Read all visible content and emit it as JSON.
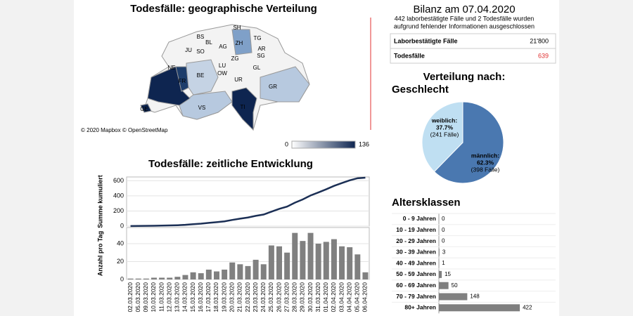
{
  "map": {
    "title": "Todesfälle: geographische Verteilung",
    "labels": [
      "SH",
      "BS",
      "BL",
      "TG",
      "JU",
      "SO",
      "AG",
      "ZH",
      "AR",
      "SG",
      "ZG",
      "GL",
      "LU",
      "NE",
      "OW",
      "BE",
      "UR",
      "FR",
      "GR",
      "VS",
      "TI",
      "GE"
    ],
    "attribution": "© 2020 Mapbox © OpenStreetMap",
    "legend": {
      "min": 0,
      "max": 136
    }
  },
  "summary": {
    "title": "Bilanz am 07.04.2020",
    "note": [
      "442 laborbestätigte Fälle und 2 Todesfälle wurden",
      "aufgrund fehlender Informationen ausgeschlossen"
    ],
    "rows": [
      [
        "Laborbestätigte Fälle",
        "21'800"
      ],
      [
        "Todesfälle",
        "639"
      ]
    ]
  },
  "chart_data": [
    {
      "type": "panels",
      "title": "Todesfälle: zeitliche Entwicklung",
      "categories": [
        "02.03.2020",
        "05.03.2020",
        "09.03.2020",
        "10.03.2020",
        "11.03.2020",
        "12.03.2020",
        "13.03.2020",
        "14.03.2020",
        "15.03.2020",
        "16.03.2020",
        "17.03.2020",
        "18.03.2020",
        "19.03.2020",
        "20.03.2020",
        "21.03.2020",
        "22.03.2020",
        "23.03.2020",
        "24.03.2020",
        "25.03.2020",
        "26.03.2020",
        "27.03.2020",
        "28.03.2020",
        "29.03.2020",
        "30.03.2020",
        "31.03.2020",
        "01.04.2020",
        "02.04.2020",
        "03.04.2020",
        "04.04.2020",
        "05.04.2020",
        "06.04.2020"
      ],
      "panels": [
        {
          "type": "line",
          "ylabel": "Summe kumuliert",
          "color": "#1b2f55",
          "ylim": [
            0,
            650
          ],
          "yticks": [
            0,
            200,
            400,
            600
          ],
          "grid": true,
          "values": [
            1,
            2,
            3,
            5,
            7,
            9,
            12,
            17,
            25,
            32,
            43,
            52,
            63,
            82,
            99,
            114,
            136,
            153,
            191,
            228,
            258,
            310,
            353,
            405,
            445,
            487,
            532,
            569,
            605,
            633,
            641
          ]
        },
        {
          "type": "bar",
          "ylabel": "Anzahl pro Tag",
          "color": "#808080",
          "ylim": [
            0,
            58
          ],
          "yticks": [
            0,
            20,
            40
          ],
          "grid": true,
          "values": [
            1,
            1,
            1,
            2,
            2,
            2,
            3,
            5,
            8,
            7,
            11,
            9,
            11,
            19,
            17,
            15,
            22,
            17,
            38,
            37,
            30,
            52,
            43,
            52,
            40,
            42,
            45,
            37,
            36,
            28,
            8
          ]
        }
      ]
    },
    {
      "type": "pie",
      "title": "Verteilung nach:",
      "subtitle": "Geschlecht",
      "labels": [
        "weiblich:",
        "männlich:"
      ],
      "values": [
        37.7,
        62.3
      ],
      "value_labels": [
        "37.7%",
        "62.3%"
      ],
      "case_labels": [
        "(241 Fälle)",
        "(398 Fälle)"
      ],
      "colors": [
        "#bfdff2",
        "#4a78b0"
      ]
    },
    {
      "type": "hbar",
      "title": "Altersklassen",
      "categories": [
        "0 - 9 Jahren",
        "10 - 19 Jahren",
        "20 - 29 Jahren",
        "30 - 39 Jahren",
        "40 - 49 Jahren",
        "50 - 59 Jahren",
        "60 - 69 Jahren",
        "70 - 79 Jahren",
        "80+ Jahren"
      ],
      "values": [
        0,
        0,
        0,
        3,
        1,
        15,
        50,
        148,
        422
      ],
      "color": "#7f7f7f",
      "xlim": [
        0,
        440
      ]
    }
  ]
}
